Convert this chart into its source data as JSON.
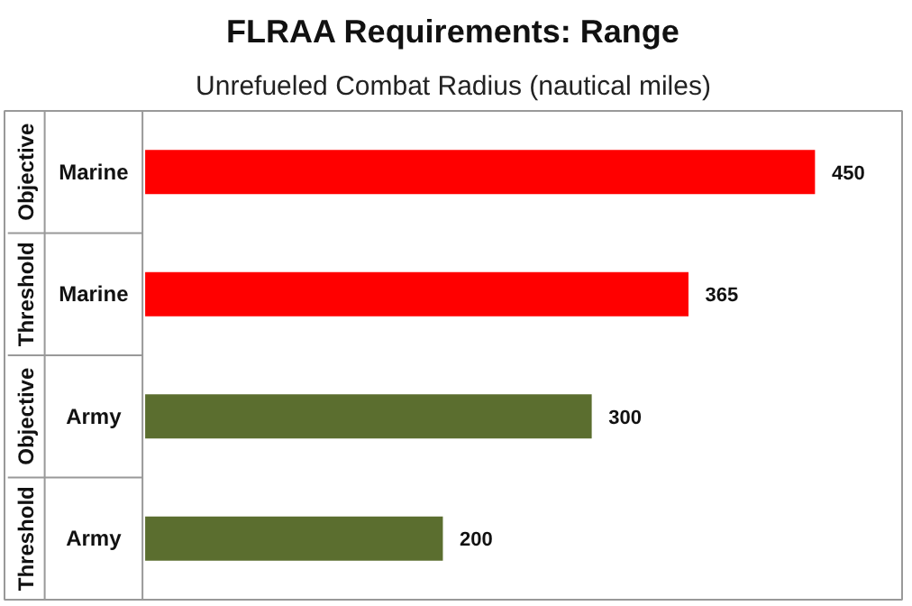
{
  "chart_data": {
    "type": "bar",
    "orientation": "horizontal",
    "title": "FLRAA Requirements: Range",
    "subtitle": "Unrefueled Combat Radius (nautical miles)",
    "categories": [
      "Marine",
      "Marine",
      "Army",
      "Army"
    ],
    "values": [
      450,
      365,
      300,
      200
    ],
    "colors": [
      "#ff0000",
      "#ff0000",
      "#5b6e2f",
      "#5b6e2f"
    ],
    "data_labels": true,
    "tick_labels": "y",
    "annotations": [
      "Objective",
      "Threshold",
      "Objective",
      "Threshold"
    ]
  }
}
